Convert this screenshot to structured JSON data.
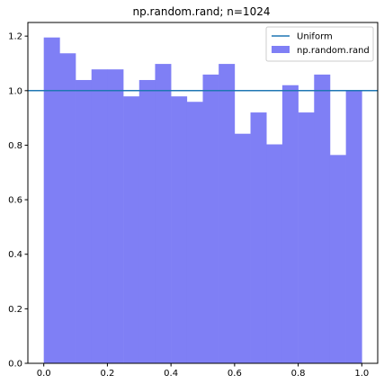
{
  "chart_data": {
    "type": "bar",
    "title": "np.random.rand; n=1024",
    "xlabel": "",
    "ylabel": "",
    "xlim": [
      -0.05,
      1.05
    ],
    "ylim": [
      0.0,
      1.25
    ],
    "x_ticks": [
      "0.0",
      "0.2",
      "0.4",
      "0.6",
      "0.8",
      "1.0"
    ],
    "x_tick_values": [
      0.0,
      0.2,
      0.4,
      0.6,
      0.8,
      1.0
    ],
    "y_ticks": [
      "0.0",
      "0.2",
      "0.4",
      "0.6",
      "0.8",
      "1.0",
      "1.2"
    ],
    "y_tick_values": [
      0.0,
      0.2,
      0.4,
      0.6,
      0.8,
      1.0,
      1.2
    ],
    "bins": {
      "edges": [
        0.0,
        0.05,
        0.1,
        0.15,
        0.2,
        0.25,
        0.3,
        0.35,
        0.4,
        0.45,
        0.5,
        0.55,
        0.6,
        0.65,
        0.7,
        0.75,
        0.8,
        0.85,
        0.9,
        0.95,
        1.0
      ],
      "values": [
        1.195,
        1.137,
        1.039,
        1.078,
        1.078,
        0.979,
        1.039,
        1.098,
        0.979,
        0.959,
        1.059,
        1.098,
        0.842,
        0.92,
        0.803,
        1.02,
        0.92,
        1.059,
        0.764,
        1.0
      ]
    },
    "series": [
      {
        "name": "Uniform",
        "type": "line",
        "y": 1.0,
        "color": "#1f77b4"
      },
      {
        "name": "np.random.rand",
        "type": "hist",
        "color": "#7f7ff5"
      }
    ],
    "legend": {
      "placement": "top-right",
      "items": [
        "Uniform",
        "np.random.rand"
      ]
    },
    "grid": false
  }
}
